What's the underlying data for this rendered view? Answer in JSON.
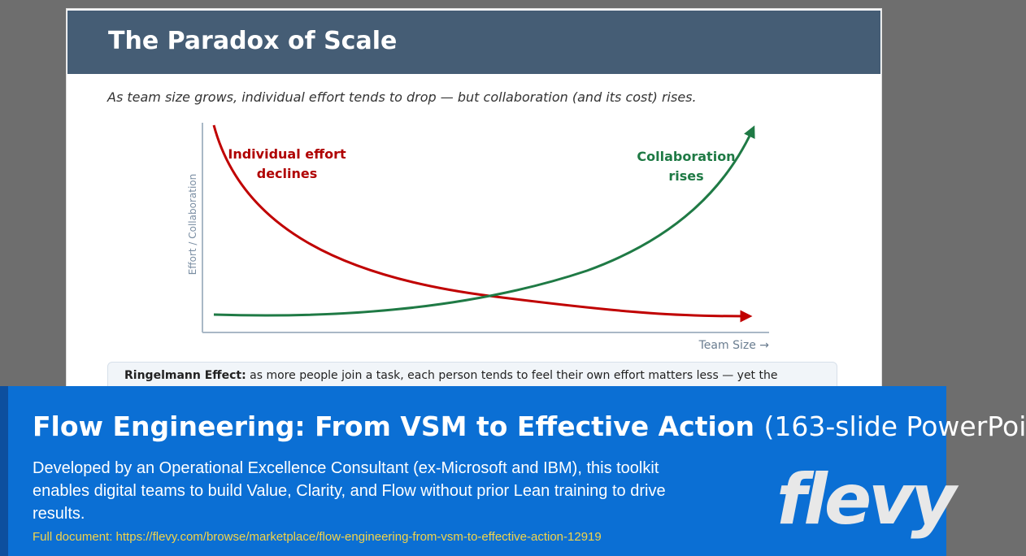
{
  "slide": {
    "title": "The Paradox of Scale",
    "subtitle": "As team size grows, individual effort tends to drop — but collaboration (and its cost) rises.",
    "y_axis_label": "Effort / Collaboration",
    "x_axis_label": "Team Size →",
    "effort_label": [
      "Individual effort",
      "declines"
    ],
    "collaboration_label": [
      "Collaboration",
      "rises"
    ],
    "callout": {
      "term": "Ringelmann Effect:",
      "text": "as more people join a task, each person tends to feel their own effort matters less — yet the"
    }
  },
  "banner": {
    "title": "Flow Engineering: From VSM to Effective Action",
    "title_suffix": "(163-slide PowerPoi",
    "description": "Developed by an Operational Excellence Consultant (ex-Microsoft and IBM), this toolkit enables digital teams to build Value, Clarity, and Flow without prior Lean training to drive results.",
    "link": "Full document: https://flevy.com/browse/marketplace/flow-engineering-from-vsm-to-effective-action-12919",
    "logo": "flevy"
  }
}
